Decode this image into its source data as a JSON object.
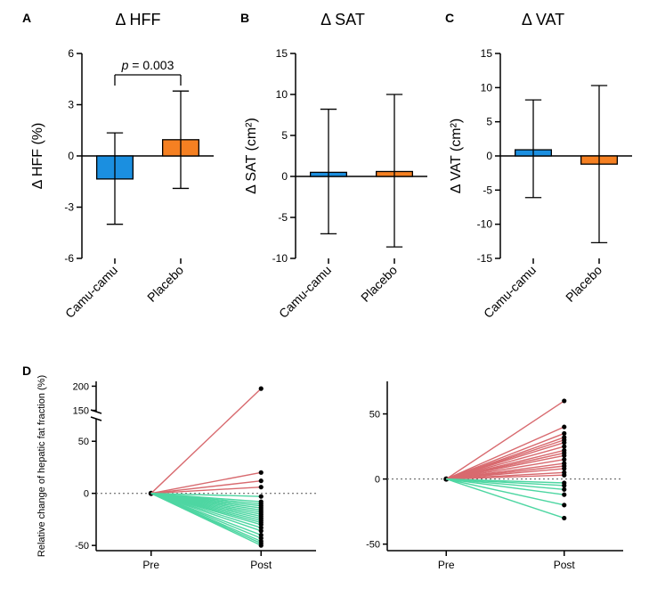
{
  "colors": {
    "camu": "#1b8fe0",
    "placebo": "#f58022",
    "bg": "#ffffff",
    "inc": "#d86a6f",
    "dec": "#4ed6a2",
    "dot": "#000000"
  },
  "panels": {
    "A": {
      "label": "A",
      "title": "Δ HFF",
      "y_title": "Δ HFF (%)",
      "ylim": [
        -6,
        6
      ],
      "ytick_step": 3,
      "categories": [
        "Camu-camu",
        "Placebo"
      ],
      "values": [
        -1.35,
        0.95
      ],
      "err_up": [
        2.7,
        2.85
      ],
      "err_down": [
        2.65,
        2.85
      ],
      "bar_colors": [
        "#1b8fe0",
        "#f58022"
      ],
      "p_label": "p = 0.003"
    },
    "B": {
      "label": "B",
      "title": "Δ SAT",
      "y_title": "Δ SAT (cm²)",
      "ylim": [
        -10,
        15
      ],
      "yticks": [
        -10,
        -5,
        0,
        5,
        10,
        15
      ],
      "categories": [
        "Camu-camu",
        "Placebo"
      ],
      "values": [
        0.5,
        0.6
      ],
      "err_up": [
        7.7,
        9.4
      ],
      "err_down": [
        7.5,
        9.2
      ],
      "bar_colors": [
        "#1b8fe0",
        "#f58022"
      ]
    },
    "C": {
      "label": "C",
      "title": "Δ VAT",
      "y_title": "Δ VAT (cm²)",
      "ylim": [
        -15,
        15
      ],
      "yticks": [
        -15,
        -10,
        -5,
        0,
        5,
        10,
        15
      ],
      "categories": [
        "Camu-camu",
        "Placebo"
      ],
      "values": [
        0.9,
        -1.2
      ],
      "err_up": [
        7.3,
        11.5
      ],
      "err_down": [
        7.0,
        11.5
      ],
      "bar_colors": [
        "#1b8fe0",
        "#f58022"
      ]
    },
    "D": {
      "label": "D",
      "y_title": "Relative change of hepatic fat fraction (%)",
      "x_categories": [
        "Pre",
        "Post"
      ],
      "left_ticks": [
        -50,
        0,
        50,
        150,
        200
      ],
      "left_break_at": 75,
      "right_ticks": [
        -50,
        0,
        50
      ],
      "left_post": [
        195,
        20,
        12,
        6,
        -3,
        -8,
        -10,
        -12,
        -14,
        -16,
        -18,
        -20,
        -22,
        -24,
        -26,
        -28,
        -30,
        -33,
        -36,
        -40,
        -43,
        -46,
        -48,
        -50
      ],
      "right_post": [
        60,
        40,
        35,
        32,
        30,
        28,
        25,
        22,
        20,
        18,
        15,
        12,
        10,
        8,
        5,
        3,
        -3,
        -5,
        -8,
        -12,
        -20,
        -30
      ]
    }
  }
}
